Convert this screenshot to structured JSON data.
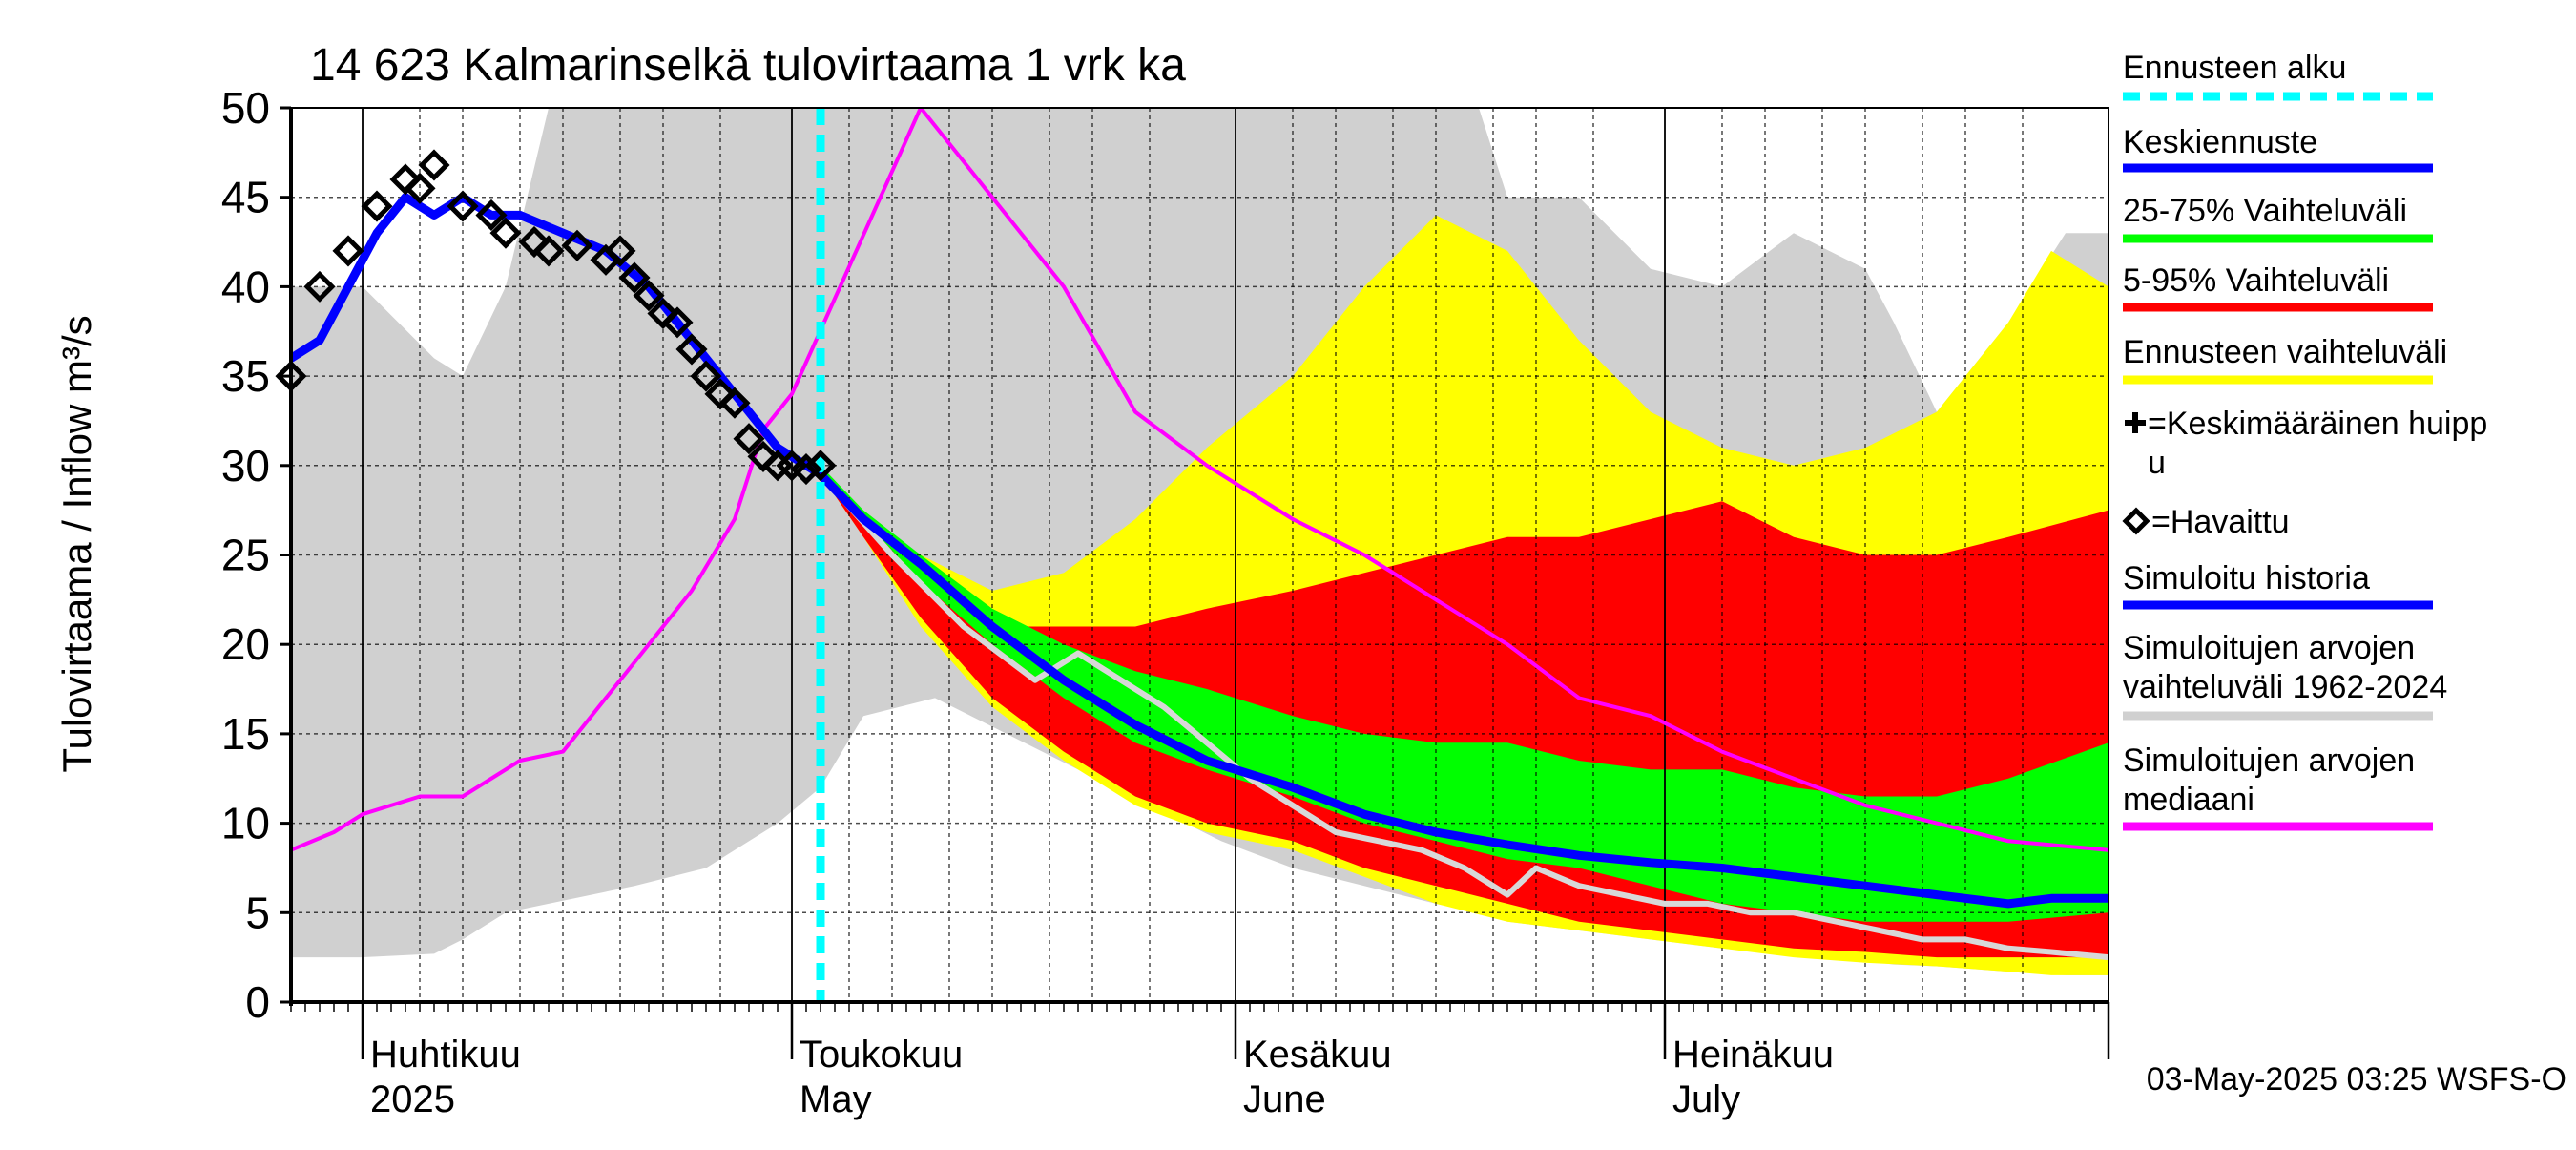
{
  "chart_data": {
    "type": "area",
    "title": "14 623 Kalmarinselkä tulovirtaama 1 vrk ka",
    "ylabel": "Tulovirtaama / Inflow    m³/s",
    "xlabel": "",
    "ylim": [
      0,
      50
    ],
    "xlim": [
      "2025-03-27",
      "2025-08-01"
    ],
    "grid": true,
    "yticks": [
      0,
      5,
      10,
      15,
      20,
      25,
      30,
      35,
      40,
      45,
      50
    ],
    "month_labels": [
      {
        "date": "2025-04-01",
        "fi": "Huhtikuu",
        "en": "2025"
      },
      {
        "date": "2025-05-01",
        "fi": "Toukokuu",
        "en": "May"
      },
      {
        "date": "2025-06-01",
        "fi": "Kesäkuu",
        "en": "June"
      },
      {
        "date": "2025-07-01",
        "fi": "Heinäkuu",
        "en": "July"
      }
    ],
    "forecast_start": "2025-05-03",
    "footer": "03-May-2025 03:25 WSFS-O",
    "colors": {
      "forecast_start": "#00ffff",
      "mean_forecast": "#0000ff",
      "band_25_75": "#00ff00",
      "band_5_95": "#ff0000",
      "forecast_range": "#ffff00",
      "historical_range": "#d0d0d0",
      "historical_median": "#ff00ff",
      "observed": "#000000",
      "grey_line": "#d8d8d8"
    },
    "legend": [
      {
        "label": "Ennusteen alku",
        "kind": "dashed",
        "color": "#00ffff"
      },
      {
        "label": "Keskiennuste",
        "kind": "line",
        "color": "#0000ff"
      },
      {
        "label": "25-75% Vaihteluväli",
        "kind": "line",
        "color": "#00ff00"
      },
      {
        "label": "5-95% Vaihteluväli",
        "kind": "line",
        "color": "#ff0000"
      },
      {
        "label": "Ennusteen vaihteluväli",
        "kind": "line",
        "color": "#ffff00"
      },
      {
        "label": "=Keskimääräinen huippu",
        "kind": "plus",
        "color": "#000000"
      },
      {
        "label": "=Havaittu",
        "kind": "diamond",
        "color": "#000000"
      },
      {
        "label": "Simuloitu historia",
        "kind": "line",
        "color": "#0000ff"
      },
      {
        "label": "Simuloitujen arvojen vaihteluväli 1962-2024",
        "kind": "line",
        "color": "#d0d0d0"
      },
      {
        "label": "Simuloitujen arvojen mediaani",
        "kind": "line",
        "color": "#ff00ff"
      }
    ],
    "series": [
      {
        "name": "Simuloitujen arvojen vaihteluväli 1962-2024",
        "kind": "band",
        "x": [
          "2025-03-27",
          "2025-04-01",
          "2025-04-06",
          "2025-04-08",
          "2025-04-11",
          "2025-04-14",
          "2025-04-20",
          "2025-04-25",
          "2025-04-30",
          "2025-05-03",
          "2025-05-06",
          "2025-05-11",
          "2025-05-16",
          "2025-05-21",
          "2025-05-26",
          "2025-05-31",
          "2025-06-05",
          "2025-06-10",
          "2025-06-15",
          "2025-06-18",
          "2025-06-20",
          "2025-06-25",
          "2025-06-30",
          "2025-07-05",
          "2025-07-10",
          "2025-07-15",
          "2025-07-17",
          "2025-07-20",
          "2025-07-25",
          "2025-07-29",
          "2025-08-01"
        ],
        "low": [
          2.5,
          2.5,
          2.7,
          3.5,
          5,
          5.5,
          6.5,
          7.5,
          10,
          12,
          16,
          17,
          15,
          13,
          11,
          9,
          7.5,
          6.5,
          5.5,
          5,
          4.5,
          4,
          3.5,
          3,
          2.6,
          2.3,
          2.1,
          2,
          1.7,
          1.5,
          1.5
        ],
        "high": [
          40,
          40,
          36,
          35,
          40,
          50,
          50,
          50,
          50,
          50,
          50,
          50,
          50,
          50,
          50,
          50,
          50,
          50,
          50,
          50,
          45,
          45,
          41,
          40,
          43,
          41,
          38,
          33,
          38,
          43,
          43
        ]
      },
      {
        "name": "Ennusteen vaihteluväli",
        "kind": "band",
        "x": [
          "2025-05-03",
          "2025-05-06",
          "2025-05-10",
          "2025-05-15",
          "2025-05-20",
          "2025-05-25",
          "2025-05-30",
          "2025-06-05",
          "2025-06-10",
          "2025-06-15",
          "2025-06-20",
          "2025-06-25",
          "2025-06-30",
          "2025-07-05",
          "2025-07-10",
          "2025-07-15",
          "2025-07-20",
          "2025-07-25",
          "2025-07-28",
          "2025-08-01"
        ],
        "low": [
          29.5,
          26,
          21,
          16.5,
          13.5,
          11,
          9.5,
          8.5,
          7,
          5.5,
          4.5,
          4,
          3.5,
          3,
          2.5,
          2.2,
          2,
          1.7,
          1.5,
          1.5
        ],
        "high": [
          30,
          27,
          25,
          23,
          24,
          27,
          31,
          35,
          40,
          44,
          42,
          37,
          33,
          31,
          30,
          31,
          33,
          38,
          42,
          40
        ]
      },
      {
        "name": "5-95% Vaihteluväli",
        "kind": "band",
        "x": [
          "2025-05-03",
          "2025-05-06",
          "2025-05-10",
          "2025-05-15",
          "2025-05-20",
          "2025-05-25",
          "2025-05-30",
          "2025-06-05",
          "2025-06-10",
          "2025-06-15",
          "2025-06-20",
          "2025-06-25",
          "2025-06-30",
          "2025-07-05",
          "2025-07-10",
          "2025-07-15",
          "2025-07-20",
          "2025-07-25",
          "2025-08-01"
        ],
        "low": [
          29.5,
          26,
          21.5,
          17,
          14,
          11.5,
          10,
          9,
          7.5,
          6.5,
          5.5,
          4.5,
          4,
          3.5,
          3,
          2.8,
          2.5,
          2.5,
          2.5
        ],
        "high": [
          30,
          27,
          24,
          21,
          21,
          21,
          22,
          23,
          24,
          25,
          26,
          26,
          27,
          28,
          26,
          25,
          25,
          26,
          27.5
        ]
      },
      {
        "name": "25-75% Vaihteluväli",
        "kind": "band",
        "x": [
          "2025-05-03",
          "2025-05-06",
          "2025-05-10",
          "2025-05-15",
          "2025-05-20",
          "2025-05-25",
          "2025-05-30",
          "2025-06-05",
          "2025-06-10",
          "2025-06-15",
          "2025-06-20",
          "2025-06-25",
          "2025-06-30",
          "2025-07-05",
          "2025-07-10",
          "2025-07-15",
          "2025-07-20",
          "2025-07-25",
          "2025-08-01"
        ],
        "low": [
          29.5,
          27,
          23.5,
          20,
          17,
          14.5,
          13,
          11.5,
          10,
          9,
          8,
          7.5,
          6.5,
          5.5,
          5,
          4.5,
          4.5,
          4.5,
          5
        ],
        "high": [
          30,
          27.5,
          25,
          22,
          20,
          18.5,
          17.5,
          16,
          15,
          14.5,
          14.5,
          13.5,
          13,
          13,
          12,
          11.5,
          11.5,
          12.5,
          14.5
        ]
      },
      {
        "name": "Simuloitujen arvojen mediaani",
        "kind": "line",
        "x": [
          "2025-03-27",
          "2025-03-30",
          "2025-04-01",
          "2025-04-05",
          "2025-04-08",
          "2025-04-12",
          "2025-04-15",
          "2025-04-18",
          "2025-04-21",
          "2025-04-24",
          "2025-04-27",
          "2025-04-29",
          "2025-05-01",
          "2025-05-10",
          "2025-05-15",
          "2025-05-20",
          "2025-05-25",
          "2025-05-30",
          "2025-06-05",
          "2025-06-10",
          "2025-06-15",
          "2025-06-20",
          "2025-06-25",
          "2025-06-30",
          "2025-07-05",
          "2025-07-10",
          "2025-07-15",
          "2025-07-20",
          "2025-07-25",
          "2025-08-01"
        ],
        "values": [
          8.5,
          9.5,
          10.5,
          11.5,
          11.5,
          13.5,
          14,
          17,
          20,
          23,
          27,
          32,
          34,
          50,
          45,
          40,
          33,
          30,
          27,
          25,
          22.5,
          20,
          17,
          16,
          14,
          12.5,
          11,
          10,
          9,
          8.5
        ]
      },
      {
        "name": "Simuloitu historia",
        "kind": "line",
        "color": "#d8d8d8",
        "x": [
          "2025-05-03",
          "2025-05-08",
          "2025-05-13",
          "2025-05-18",
          "2025-05-21",
          "2025-05-24",
          "2025-05-27",
          "2025-05-30",
          "2025-06-02",
          "2025-06-05",
          "2025-06-08",
          "2025-06-11",
          "2025-06-14",
          "2025-06-17",
          "2025-06-20",
          "2025-06-22",
          "2025-06-25",
          "2025-06-28",
          "2025-07-01",
          "2025-07-04",
          "2025-07-07",
          "2025-07-10",
          "2025-07-13",
          "2025-07-16",
          "2025-07-19",
          "2025-07-22",
          "2025-07-25",
          "2025-07-28",
          "2025-08-01"
        ],
        "values": [
          29.5,
          25,
          21,
          18,
          19.5,
          18,
          16.5,
          14.5,
          12.5,
          11,
          9.5,
          9,
          8.5,
          7.5,
          6,
          7.5,
          6.5,
          6,
          5.5,
          5.5,
          5,
          5,
          4.5,
          4,
          3.5,
          3.5,
          3,
          2.8,
          2.5
        ]
      },
      {
        "name": "Keskiennuste",
        "kind": "line",
        "x": [
          "2025-03-27",
          "2025-03-29",
          "2025-03-31",
          "2025-04-02",
          "2025-04-04",
          "2025-04-06",
          "2025-04-08",
          "2025-04-10",
          "2025-04-12",
          "2025-04-15",
          "2025-04-18",
          "2025-04-21",
          "2025-04-24",
          "2025-04-27",
          "2025-04-30",
          "2025-05-03",
          "2025-05-06",
          "2025-05-10",
          "2025-05-15",
          "2025-05-20",
          "2025-05-25",
          "2025-05-30",
          "2025-06-05",
          "2025-06-10",
          "2025-06-15",
          "2025-06-20",
          "2025-06-25",
          "2025-06-30",
          "2025-07-05",
          "2025-07-10",
          "2025-07-15",
          "2025-07-20",
          "2025-07-25",
          "2025-07-28",
          "2025-08-01"
        ],
        "values": [
          36,
          37,
          40,
          43,
          45,
          44,
          45,
          44,
          44,
          43,
          42,
          40,
          37,
          34,
          31,
          29.5,
          27,
          24.5,
          21,
          18,
          15.5,
          13.5,
          12,
          10.5,
          9.5,
          8.8,
          8.2,
          7.8,
          7.5,
          7,
          6.5,
          6,
          5.5,
          5.8,
          5.8
        ]
      }
    ],
    "observed": {
      "name": "Havaittu",
      "x": [
        "2025-03-27",
        "2025-03-29",
        "2025-03-31",
        "2025-04-02",
        "2025-04-04",
        "2025-04-05",
        "2025-04-06",
        "2025-04-08",
        "2025-04-10",
        "2025-04-11",
        "2025-04-13",
        "2025-04-14",
        "2025-04-16",
        "2025-04-18",
        "2025-04-19",
        "2025-04-20",
        "2025-04-21",
        "2025-04-22",
        "2025-04-23",
        "2025-04-24",
        "2025-04-25",
        "2025-04-26",
        "2025-04-27",
        "2025-04-28",
        "2025-04-29",
        "2025-04-30",
        "2025-05-01",
        "2025-05-02",
        "2025-05-03"
      ],
      "values": [
        35,
        40,
        42,
        44.5,
        46,
        45.5,
        46.8,
        44.5,
        44,
        43,
        42.5,
        42,
        42.3,
        41.5,
        42,
        40.5,
        39.5,
        38.5,
        38,
        36.5,
        35,
        34,
        33.5,
        31.5,
        30.5,
        30,
        30,
        29.8,
        30
      ]
    }
  }
}
